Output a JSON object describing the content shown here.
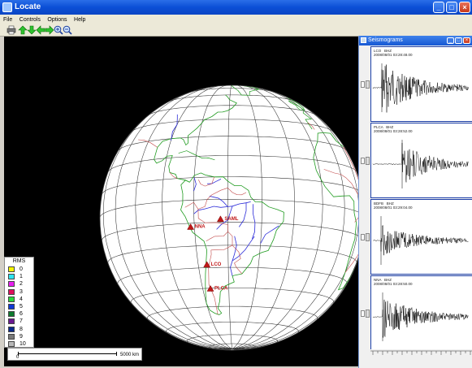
{
  "window": {
    "title": "Locate"
  },
  "menu": [
    "File",
    "Controls",
    "Options",
    "Help"
  ],
  "toolbar": {
    "icons": [
      "print-icon",
      "arrow-up-icon",
      "arrow-down-icon",
      "arrow-left-icon",
      "arrow-right-icon",
      "zoom-in-icon",
      "zoom-out-icon"
    ]
  },
  "map": {
    "stations": [
      {
        "code": "NNA",
        "lon": -76.8,
        "lat": -11.99
      },
      {
        "code": "SAML",
        "lon": -63.2,
        "lat": -8.95
      },
      {
        "code": "LCO",
        "lon": -70.7,
        "lat": -29.0
      },
      {
        "code": "PLCA",
        "lon": -70.6,
        "lat": -40.7
      }
    ],
    "legend": {
      "title": "RMS",
      "items": [
        {
          "label": "0",
          "color": "#f6f600"
        },
        {
          "label": "1",
          "color": "#2ee5f0"
        },
        {
          "label": "2",
          "color": "#e81ff0"
        },
        {
          "label": "3",
          "color": "#e0105c"
        },
        {
          "label": "4",
          "color": "#2ad93c"
        },
        {
          "label": "5",
          "color": "#0e38d6"
        },
        {
          "label": "6",
          "color": "#0e7a2e"
        },
        {
          "label": "7",
          "color": "#6a1890"
        },
        {
          "label": "8",
          "color": "#0a2a8c"
        },
        {
          "label": "9",
          "color": "#7a7a7a"
        },
        {
          "label": "10",
          "color": "#b8b8b8"
        }
      ]
    },
    "scale": {
      "start": "0",
      "end": "5000 km"
    }
  },
  "seismograms": {
    "title": "Seismograms",
    "traces": [
      {
        "station": "LCO",
        "channel": "BHZ",
        "time": "2008/08/01 03:28:48.00"
      },
      {
        "station": "PLCA",
        "channel": "BHZ",
        "time": "2008/08/01 03:28:52.00"
      },
      {
        "station": "BDFB",
        "channel": "BHZ",
        "time": "2008/08/01 03:29:04.00"
      },
      {
        "station": "NNA",
        "channel": "BHZ",
        "time": "2008/08/01 03:28:50.00"
      }
    ]
  }
}
